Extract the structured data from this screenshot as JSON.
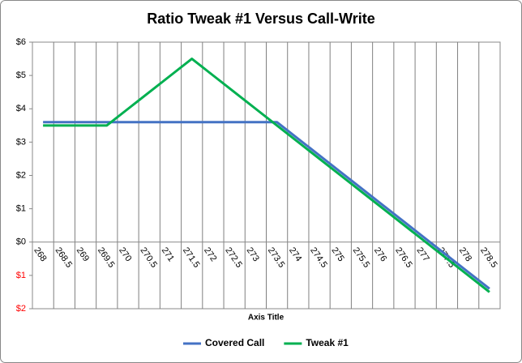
{
  "chart_data": {
    "type": "line",
    "title": "Ratio Tweak #1 Versus Call-Write",
    "x_label": "Axis Title",
    "categories": [
      "268",
      "268.5",
      "269",
      "269.5",
      "270",
      "270.5",
      "271",
      "271.5",
      "272",
      "272.5",
      "273",
      "273.5",
      "274",
      "274.5",
      "275",
      "275.5",
      "276",
      "276.5",
      "277",
      "277.5",
      "278",
      "278.5"
    ],
    "series": [
      {
        "name": "Covered Call",
        "color": "#4472c4",
        "values": [
          3.6,
          3.6,
          3.6,
          3.6,
          3.6,
          3.6,
          3.6,
          3.6,
          3.6,
          3.6,
          3.6,
          3.6,
          3.1,
          2.6,
          2.1,
          1.6,
          1.1,
          0.6,
          0.1,
          -0.4,
          -0.9,
          -1.4
        ]
      },
      {
        "name": "Tweak #1",
        "color": "#00b050",
        "values": [
          3.5,
          3.5,
          3.5,
          3.5,
          4.0,
          4.5,
          5.0,
          5.5,
          5.0,
          4.5,
          4.0,
          3.5,
          3.0,
          2.5,
          2.0,
          1.5,
          1.0,
          0.5,
          0.0,
          -0.5,
          -1.0,
          -1.5
        ]
      }
    ],
    "ylim": [
      -2,
      6
    ],
    "yticks": [
      {
        "value": -2,
        "label": "$2"
      },
      {
        "value": -1,
        "label": "$1"
      },
      {
        "value": 0,
        "label": "$0"
      },
      {
        "value": 1,
        "label": "$1"
      },
      {
        "value": 2,
        "label": "$2"
      },
      {
        "value": 3,
        "label": "$3"
      },
      {
        "value": 4,
        "label": "$4"
      },
      {
        "value": 5,
        "label": "$5"
      },
      {
        "value": 6,
        "label": "$6"
      }
    ],
    "negative_label_color": "#ff0000",
    "grid": true,
    "legend": "bottom"
  }
}
